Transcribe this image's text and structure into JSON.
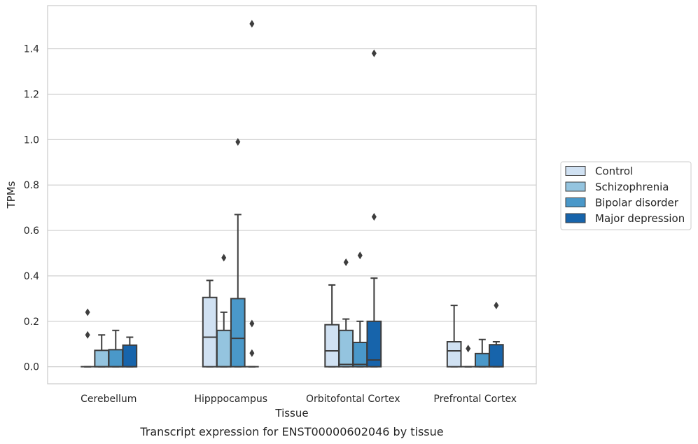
{
  "chart_data": {
    "type": "box",
    "caption": "Transcript expression for ENST00000602046 by tissue",
    "xlabel": "Tissue",
    "ylabel": "TPMs",
    "ylim": [
      -0.075,
      1.59
    ],
    "yticks": [
      0.0,
      0.2,
      0.4,
      0.6,
      0.8,
      1.0,
      1.2,
      1.4
    ],
    "ytick_labels": [
      "0.0",
      "0.2",
      "0.4",
      "0.6",
      "0.8",
      "1.0",
      "1.2",
      "1.4"
    ],
    "grid": "horizontal",
    "legend_position": "right",
    "categories": [
      "Cerebellum",
      "Hipppocampus",
      "Orbitofontal Cortex",
      "Prefrontal Cortex"
    ],
    "series": [
      {
        "name": "Control",
        "color": "#d0e1f2",
        "boxes": [
          {
            "whislo": 0.0,
            "q1": 0.0,
            "med": 0.0,
            "q3": 0.0,
            "whishi": 0.0,
            "fliers": [
              0.14,
              0.24
            ]
          },
          {
            "whislo": 0.0,
            "q1": 0.0,
            "med": 0.13,
            "q3": 0.305,
            "whishi": 0.38,
            "fliers": []
          },
          {
            "whislo": 0.0,
            "q1": 0.0,
            "med": 0.07,
            "q3": 0.185,
            "whishi": 0.36,
            "fliers": []
          },
          {
            "whislo": 0.0,
            "q1": 0.0,
            "med": 0.07,
            "q3": 0.11,
            "whishi": 0.27,
            "fliers": []
          }
        ]
      },
      {
        "name": "Schizophrenia",
        "color": "#94c4df",
        "boxes": [
          {
            "whislo": 0.0,
            "q1": 0.0,
            "med": 0.0,
            "q3": 0.072,
            "whishi": 0.14,
            "fliers": []
          },
          {
            "whislo": 0.0,
            "q1": 0.0,
            "med": 0.0,
            "q3": 0.16,
            "whishi": 0.24,
            "fliers": [
              0.48
            ]
          },
          {
            "whislo": 0.0,
            "q1": 0.0,
            "med": 0.01,
            "q3": 0.16,
            "whishi": 0.21,
            "fliers": [
              0.46
            ]
          },
          {
            "whislo": 0.0,
            "q1": 0.0,
            "med": 0.0,
            "q3": 0.0,
            "whishi": 0.0,
            "fliers": [
              0.08
            ]
          }
        ]
      },
      {
        "name": "Bipolar disorder",
        "color": "#4a98c9",
        "boxes": [
          {
            "whislo": 0.0,
            "q1": 0.0,
            "med": 0.0,
            "q3": 0.075,
            "whishi": 0.16,
            "fliers": []
          },
          {
            "whislo": 0.0,
            "q1": 0.0,
            "med": 0.125,
            "q3": 0.3,
            "whishi": 0.67,
            "fliers": [
              0.99
            ]
          },
          {
            "whislo": 0.0,
            "q1": 0.0,
            "med": 0.01,
            "q3": 0.107,
            "whishi": 0.2,
            "fliers": [
              0.49
            ]
          },
          {
            "whislo": 0.0,
            "q1": 0.0,
            "med": 0.0,
            "q3": 0.058,
            "whishi": 0.12,
            "fliers": []
          }
        ]
      },
      {
        "name": "Major depression",
        "color": "#1764ab",
        "boxes": [
          {
            "whislo": 0.0,
            "q1": 0.0,
            "med": 0.0,
            "q3": 0.095,
            "whishi": 0.13,
            "fliers": []
          },
          {
            "whislo": 0.0,
            "q1": 0.0,
            "med": 0.0,
            "q3": 0.0,
            "whishi": 0.0,
            "fliers": [
              0.06,
              0.19,
              1.51
            ]
          },
          {
            "whislo": 0.0,
            "q1": 0.0,
            "med": 0.03,
            "q3": 0.2,
            "whishi": 0.39,
            "fliers": [
              0.66,
              1.38
            ]
          },
          {
            "whislo": 0.0,
            "q1": 0.0,
            "med": 0.0,
            "q3": 0.097,
            "whishi": 0.11,
            "fliers": [
              0.27
            ]
          }
        ]
      }
    ]
  }
}
